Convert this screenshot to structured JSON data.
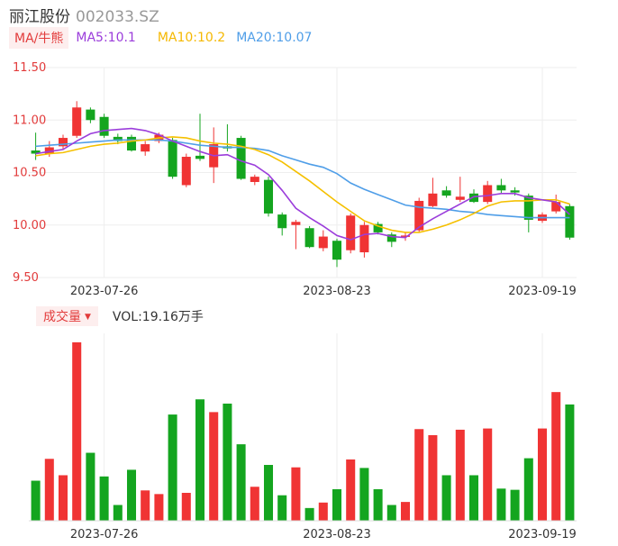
{
  "header": {
    "name": "丽江股份",
    "code": "002033.SZ"
  },
  "ma_legend": {
    "tag": "MA/牛熊",
    "ma5": "MA5:10.1",
    "ma10": "MA10:10.2",
    "ma20": "MA20:10.07"
  },
  "volume_legend": {
    "tag": "成交量",
    "value": "VOL:19.16万手"
  },
  "colors": {
    "up": "#f03434",
    "down": "#14a51f",
    "ma5": "#9b3ddb",
    "ma10": "#f5c000",
    "ma20": "#4f9ee8",
    "price_axis": "#e23b3b",
    "grid": "#eeeeee"
  },
  "chart_data": [
    {
      "type": "candlestick",
      "title": "",
      "yticks": [
        "11.50",
        "11.00",
        "10.50",
        "10.00",
        "9.50"
      ],
      "ylim": [
        9.5,
        11.5
      ],
      "xticks": [
        "2023-07-26",
        "2023-08-23",
        "2023-09-19"
      ],
      "candles": [
        {
          "o": 10.71,
          "c": 10.68,
          "h": 10.88,
          "l": 10.62
        },
        {
          "o": 10.68,
          "c": 10.74,
          "h": 10.8,
          "l": 10.65
        },
        {
          "o": 10.75,
          "c": 10.83,
          "h": 10.86,
          "l": 10.72
        },
        {
          "o": 10.85,
          "c": 11.12,
          "h": 11.18,
          "l": 10.83
        },
        {
          "o": 11.1,
          "c": 11.0,
          "h": 11.12,
          "l": 10.97
        },
        {
          "o": 11.03,
          "c": 10.85,
          "h": 11.06,
          "l": 10.83
        },
        {
          "o": 10.84,
          "c": 10.8,
          "h": 10.87,
          "l": 10.77
        },
        {
          "o": 10.84,
          "c": 10.71,
          "h": 10.86,
          "l": 10.7
        },
        {
          "o": 10.7,
          "c": 10.77,
          "h": 10.8,
          "l": 10.66
        },
        {
          "o": 10.8,
          "c": 10.86,
          "h": 10.88,
          "l": 10.78
        },
        {
          "o": 10.81,
          "c": 10.46,
          "h": 10.83,
          "l": 10.44
        },
        {
          "o": 10.38,
          "c": 10.65,
          "h": 10.68,
          "l": 10.36
        },
        {
          "o": 10.66,
          "c": 10.63,
          "h": 11.06,
          "l": 10.61
        },
        {
          "o": 10.55,
          "c": 10.77,
          "h": 10.93,
          "l": 10.4
        },
        {
          "o": 10.75,
          "c": 10.73,
          "h": 10.96,
          "l": 10.7
        },
        {
          "o": 10.83,
          "c": 10.44,
          "h": 10.85,
          "l": 10.43
        },
        {
          "o": 10.41,
          "c": 10.46,
          "h": 10.48,
          "l": 10.38
        },
        {
          "o": 10.43,
          "c": 10.11,
          "h": 10.46,
          "l": 10.08
        },
        {
          "o": 10.1,
          "c": 9.97,
          "h": 10.12,
          "l": 9.9
        },
        {
          "o": 10.0,
          "c": 10.03,
          "h": 10.05,
          "l": 9.77
        },
        {
          "o": 9.97,
          "c": 9.79,
          "h": 9.99,
          "l": 9.78
        },
        {
          "o": 9.78,
          "c": 9.89,
          "h": 9.95,
          "l": 9.75
        },
        {
          "o": 9.85,
          "c": 9.67,
          "h": 9.87,
          "l": 9.6
        },
        {
          "o": 9.76,
          "c": 10.09,
          "h": 10.11,
          "l": 9.73
        },
        {
          "o": 9.74,
          "c": 10.0,
          "h": 10.03,
          "l": 9.69
        },
        {
          "o": 10.01,
          "c": 9.93,
          "h": 10.03,
          "l": 9.91
        },
        {
          "o": 9.91,
          "c": 9.84,
          "h": 9.93,
          "l": 9.79
        },
        {
          "o": 9.89,
          "c": 9.9,
          "h": 9.93,
          "l": 9.85
        },
        {
          "o": 9.95,
          "c": 10.23,
          "h": 10.26,
          "l": 9.93
        },
        {
          "o": 10.18,
          "c": 10.3,
          "h": 10.45,
          "l": 10.17
        },
        {
          "o": 10.33,
          "c": 10.28,
          "h": 10.37,
          "l": 10.26
        },
        {
          "o": 10.24,
          "c": 10.27,
          "h": 10.46,
          "l": 10.22
        },
        {
          "o": 10.3,
          "c": 10.22,
          "h": 10.34,
          "l": 10.21
        },
        {
          "o": 10.22,
          "c": 10.38,
          "h": 10.42,
          "l": 10.2
        },
        {
          "o": 10.38,
          "c": 10.33,
          "h": 10.44,
          "l": 10.3
        },
        {
          "o": 10.33,
          "c": 10.31,
          "h": 10.36,
          "l": 10.28
        },
        {
          "o": 10.28,
          "c": 10.05,
          "h": 10.3,
          "l": 9.93
        },
        {
          "o": 10.04,
          "c": 10.1,
          "h": 10.12,
          "l": 10.02
        },
        {
          "o": 10.13,
          "c": 10.22,
          "h": 10.29,
          "l": 10.11
        },
        {
          "o": 10.18,
          "c": 9.88,
          "h": 10.2,
          "l": 9.86
        }
      ],
      "ma5": [
        10.68,
        10.7,
        10.72,
        10.8,
        10.87,
        10.9,
        10.91,
        10.92,
        10.9,
        10.86,
        10.8,
        10.75,
        10.7,
        10.66,
        10.67,
        10.61,
        10.57,
        10.48,
        10.33,
        10.16,
        10.07,
        9.99,
        9.9,
        9.86,
        9.91,
        9.92,
        9.89,
        9.88,
        9.98,
        10.06,
        10.13,
        10.2,
        10.27,
        10.28,
        10.3,
        10.3,
        10.26,
        10.24,
        10.22,
        10.1
      ],
      "ma10": [
        10.66,
        10.68,
        10.69,
        10.72,
        10.75,
        10.77,
        10.78,
        10.8,
        10.81,
        10.83,
        10.84,
        10.83,
        10.8,
        10.78,
        10.77,
        10.75,
        10.72,
        10.67,
        10.6,
        10.51,
        10.42,
        10.32,
        10.22,
        10.13,
        10.04,
        9.99,
        9.95,
        9.93,
        9.93,
        9.96,
        10.0,
        10.05,
        10.11,
        10.18,
        10.22,
        10.23,
        10.23,
        10.24,
        10.24,
        10.2
      ],
      "ma20": [
        10.75,
        10.76,
        10.77,
        10.78,
        10.79,
        10.8,
        10.81,
        10.81,
        10.81,
        10.81,
        10.8,
        10.78,
        10.76,
        10.75,
        10.74,
        10.74,
        10.73,
        10.71,
        10.66,
        10.62,
        10.58,
        10.55,
        10.49,
        10.4,
        10.34,
        10.29,
        10.24,
        10.19,
        10.17,
        10.16,
        10.15,
        10.13,
        10.12,
        10.1,
        10.09,
        10.08,
        10.07,
        10.07,
        10.07,
        10.07
      ]
    },
    {
      "type": "bar",
      "title": "",
      "xticks": [
        "2023-07-26",
        "2023-08-23",
        "2023-09-19"
      ],
      "volumes": [
        6.6,
        10.2,
        7.5,
        29.4,
        11.2,
        7.3,
        2.6,
        8.4,
        5.0,
        4.4,
        17.5,
        4.6,
        20.0,
        17.9,
        19.3,
        12.6,
        5.6,
        9.2,
        4.2,
        8.8,
        2.1,
        3.0,
        5.2,
        10.1,
        8.7,
        5.2,
        2.6,
        3.1,
        15.1,
        14.1,
        7.5,
        15.0,
        7.5,
        15.2,
        5.3,
        5.1,
        10.3,
        15.2,
        21.2,
        19.16
      ],
      "up": [
        false,
        true,
        true,
        true,
        false,
        false,
        false,
        false,
        true,
        true,
        false,
        true,
        false,
        true,
        false,
        false,
        true,
        false,
        false,
        true,
        false,
        true,
        false,
        true,
        false,
        false,
        false,
        true,
        true,
        true,
        false,
        true,
        false,
        true,
        false,
        false,
        false,
        true,
        true,
        false
      ]
    }
  ]
}
